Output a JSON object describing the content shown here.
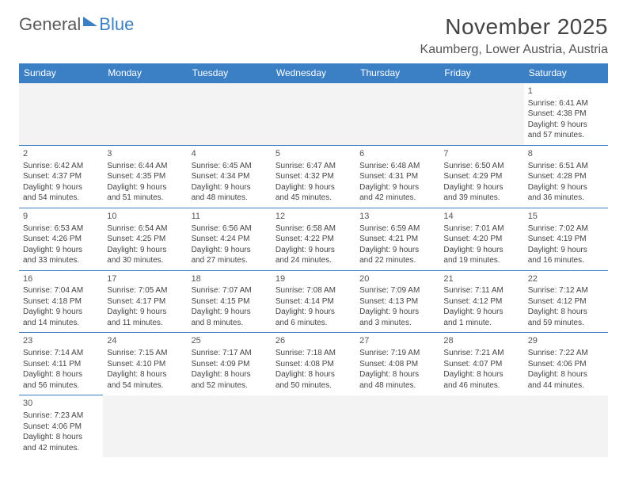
{
  "logo": {
    "text_general": "General",
    "text_blue": "Blue"
  },
  "title": "November 2025",
  "location": "Kaumberg, Lower Austria, Austria",
  "colors": {
    "header_bg": "#3b7fc4",
    "header_text": "#ffffff",
    "border": "#3b7fc4",
    "empty_bg": "#f3f3f3",
    "text": "#444444"
  },
  "day_headers": [
    "Sunday",
    "Monday",
    "Tuesday",
    "Wednesday",
    "Thursday",
    "Friday",
    "Saturday"
  ],
  "weeks": [
    [
      null,
      null,
      null,
      null,
      null,
      null,
      {
        "n": "1",
        "sunrise": "Sunrise: 6:41 AM",
        "sunset": "Sunset: 4:38 PM",
        "day1": "Daylight: 9 hours",
        "day2": "and 57 minutes."
      }
    ],
    [
      {
        "n": "2",
        "sunrise": "Sunrise: 6:42 AM",
        "sunset": "Sunset: 4:37 PM",
        "day1": "Daylight: 9 hours",
        "day2": "and 54 minutes."
      },
      {
        "n": "3",
        "sunrise": "Sunrise: 6:44 AM",
        "sunset": "Sunset: 4:35 PM",
        "day1": "Daylight: 9 hours",
        "day2": "and 51 minutes."
      },
      {
        "n": "4",
        "sunrise": "Sunrise: 6:45 AM",
        "sunset": "Sunset: 4:34 PM",
        "day1": "Daylight: 9 hours",
        "day2": "and 48 minutes."
      },
      {
        "n": "5",
        "sunrise": "Sunrise: 6:47 AM",
        "sunset": "Sunset: 4:32 PM",
        "day1": "Daylight: 9 hours",
        "day2": "and 45 minutes."
      },
      {
        "n": "6",
        "sunrise": "Sunrise: 6:48 AM",
        "sunset": "Sunset: 4:31 PM",
        "day1": "Daylight: 9 hours",
        "day2": "and 42 minutes."
      },
      {
        "n": "7",
        "sunrise": "Sunrise: 6:50 AM",
        "sunset": "Sunset: 4:29 PM",
        "day1": "Daylight: 9 hours",
        "day2": "and 39 minutes."
      },
      {
        "n": "8",
        "sunrise": "Sunrise: 6:51 AM",
        "sunset": "Sunset: 4:28 PM",
        "day1": "Daylight: 9 hours",
        "day2": "and 36 minutes."
      }
    ],
    [
      {
        "n": "9",
        "sunrise": "Sunrise: 6:53 AM",
        "sunset": "Sunset: 4:26 PM",
        "day1": "Daylight: 9 hours",
        "day2": "and 33 minutes."
      },
      {
        "n": "10",
        "sunrise": "Sunrise: 6:54 AM",
        "sunset": "Sunset: 4:25 PM",
        "day1": "Daylight: 9 hours",
        "day2": "and 30 minutes."
      },
      {
        "n": "11",
        "sunrise": "Sunrise: 6:56 AM",
        "sunset": "Sunset: 4:24 PM",
        "day1": "Daylight: 9 hours",
        "day2": "and 27 minutes."
      },
      {
        "n": "12",
        "sunrise": "Sunrise: 6:58 AM",
        "sunset": "Sunset: 4:22 PM",
        "day1": "Daylight: 9 hours",
        "day2": "and 24 minutes."
      },
      {
        "n": "13",
        "sunrise": "Sunrise: 6:59 AM",
        "sunset": "Sunset: 4:21 PM",
        "day1": "Daylight: 9 hours",
        "day2": "and 22 minutes."
      },
      {
        "n": "14",
        "sunrise": "Sunrise: 7:01 AM",
        "sunset": "Sunset: 4:20 PM",
        "day1": "Daylight: 9 hours",
        "day2": "and 19 minutes."
      },
      {
        "n": "15",
        "sunrise": "Sunrise: 7:02 AM",
        "sunset": "Sunset: 4:19 PM",
        "day1": "Daylight: 9 hours",
        "day2": "and 16 minutes."
      }
    ],
    [
      {
        "n": "16",
        "sunrise": "Sunrise: 7:04 AM",
        "sunset": "Sunset: 4:18 PM",
        "day1": "Daylight: 9 hours",
        "day2": "and 14 minutes."
      },
      {
        "n": "17",
        "sunrise": "Sunrise: 7:05 AM",
        "sunset": "Sunset: 4:17 PM",
        "day1": "Daylight: 9 hours",
        "day2": "and 11 minutes."
      },
      {
        "n": "18",
        "sunrise": "Sunrise: 7:07 AM",
        "sunset": "Sunset: 4:15 PM",
        "day1": "Daylight: 9 hours",
        "day2": "and 8 minutes."
      },
      {
        "n": "19",
        "sunrise": "Sunrise: 7:08 AM",
        "sunset": "Sunset: 4:14 PM",
        "day1": "Daylight: 9 hours",
        "day2": "and 6 minutes."
      },
      {
        "n": "20",
        "sunrise": "Sunrise: 7:09 AM",
        "sunset": "Sunset: 4:13 PM",
        "day1": "Daylight: 9 hours",
        "day2": "and 3 minutes."
      },
      {
        "n": "21",
        "sunrise": "Sunrise: 7:11 AM",
        "sunset": "Sunset: 4:12 PM",
        "day1": "Daylight: 9 hours",
        "day2": "and 1 minute."
      },
      {
        "n": "22",
        "sunrise": "Sunrise: 7:12 AM",
        "sunset": "Sunset: 4:12 PM",
        "day1": "Daylight: 8 hours",
        "day2": "and 59 minutes."
      }
    ],
    [
      {
        "n": "23",
        "sunrise": "Sunrise: 7:14 AM",
        "sunset": "Sunset: 4:11 PM",
        "day1": "Daylight: 8 hours",
        "day2": "and 56 minutes."
      },
      {
        "n": "24",
        "sunrise": "Sunrise: 7:15 AM",
        "sunset": "Sunset: 4:10 PM",
        "day1": "Daylight: 8 hours",
        "day2": "and 54 minutes."
      },
      {
        "n": "25",
        "sunrise": "Sunrise: 7:17 AM",
        "sunset": "Sunset: 4:09 PM",
        "day1": "Daylight: 8 hours",
        "day2": "and 52 minutes."
      },
      {
        "n": "26",
        "sunrise": "Sunrise: 7:18 AM",
        "sunset": "Sunset: 4:08 PM",
        "day1": "Daylight: 8 hours",
        "day2": "and 50 minutes."
      },
      {
        "n": "27",
        "sunrise": "Sunrise: 7:19 AM",
        "sunset": "Sunset: 4:08 PM",
        "day1": "Daylight: 8 hours",
        "day2": "and 48 minutes."
      },
      {
        "n": "28",
        "sunrise": "Sunrise: 7:21 AM",
        "sunset": "Sunset: 4:07 PM",
        "day1": "Daylight: 8 hours",
        "day2": "and 46 minutes."
      },
      {
        "n": "29",
        "sunrise": "Sunrise: 7:22 AM",
        "sunset": "Sunset: 4:06 PM",
        "day1": "Daylight: 8 hours",
        "day2": "and 44 minutes."
      }
    ],
    [
      {
        "n": "30",
        "sunrise": "Sunrise: 7:23 AM",
        "sunset": "Sunset: 4:06 PM",
        "day1": "Daylight: 8 hours",
        "day2": "and 42 minutes."
      },
      null,
      null,
      null,
      null,
      null,
      null
    ]
  ]
}
